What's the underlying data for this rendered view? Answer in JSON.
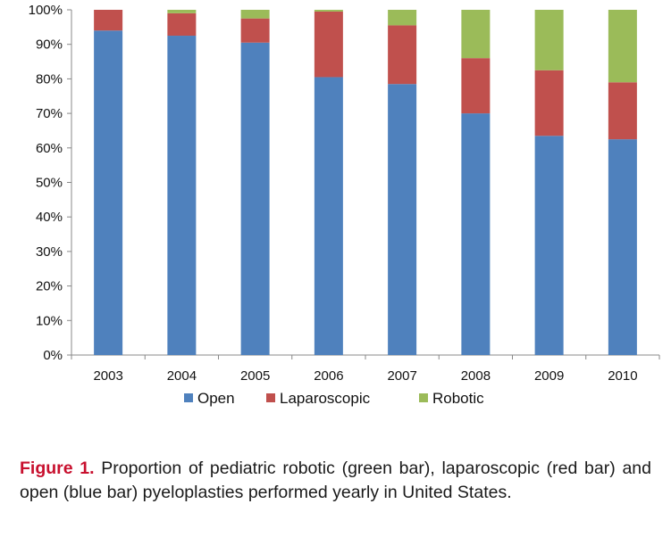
{
  "chart_data": {
    "type": "bar",
    "stacked": true,
    "percent": true,
    "categories": [
      "2003",
      "2004",
      "2005",
      "2006",
      "2007",
      "2008",
      "2009",
      "2010"
    ],
    "series": [
      {
        "name": "Open",
        "color": "#4f81bd",
        "values": [
          94,
          92.5,
          90.5,
          80.5,
          78.5,
          70,
          63.5,
          62.5
        ]
      },
      {
        "name": "Laparoscopic",
        "color": "#c0504d",
        "values": [
          6,
          6.5,
          7,
          19,
          17,
          16,
          19,
          16.5
        ]
      },
      {
        "name": "Robotic",
        "color": "#9bbb59",
        "values": [
          0,
          1,
          2.5,
          0.5,
          4.5,
          14,
          17.5,
          21
        ]
      }
    ],
    "ylim": [
      0,
      100
    ],
    "yticks": [
      "0%",
      "10%",
      "20%",
      "30%",
      "40%",
      "50%",
      "60%",
      "70%",
      "80%",
      "90%",
      "100%"
    ],
    "grid": false,
    "legend": "bottom"
  },
  "caption": {
    "label": "Figure 1.",
    "text": "Proportion of pediatric robotic (green bar), laparoscopic (red bar) and open (blue bar) pyeloplasties performed yearly in United States."
  }
}
